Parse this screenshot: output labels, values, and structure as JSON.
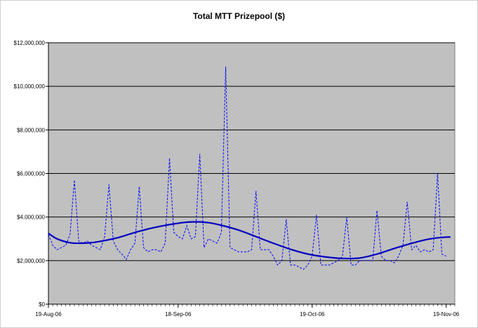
{
  "chart_data": {
    "type": "line",
    "title": "Total MTT Prizepool ($)",
    "xlabel": "",
    "ylabel": "",
    "ylim": [
      0,
      12000000
    ],
    "y_ticks": [
      0,
      2000000,
      4000000,
      6000000,
      8000000,
      10000000,
      12000000
    ],
    "y_tick_labels": [
      "$0",
      "$2,000,000",
      "$4,000,000",
      "$6,000,000",
      "$8,000,000",
      "$10,000,000",
      "$12,000,000"
    ],
    "x_range": [
      "2006-08-19",
      "2006-11-21"
    ],
    "x_ticks": [
      "2006-08-19",
      "2006-09-18",
      "2006-10-19",
      "2006-11-19"
    ],
    "x_tick_labels": [
      "19-Aug-06",
      "18-Sep-06",
      "19-Oct-06",
      "19-Nov-06"
    ],
    "grid": true,
    "plot_background": "#c0c0c0",
    "series": [
      {
        "style": "dashed",
        "color": "#0000ff",
        "points": [
          [
            "2006-08-19",
            3200000
          ],
          [
            "2006-08-20",
            2700000
          ],
          [
            "2006-08-21",
            2500000
          ],
          [
            "2006-08-22",
            2600000
          ],
          [
            "2006-08-23",
            2700000
          ],
          [
            "2006-08-24",
            3200000
          ],
          [
            "2006-08-25",
            5700000
          ],
          [
            "2006-08-26",
            2900000
          ],
          [
            "2006-08-27",
            2800000
          ],
          [
            "2006-08-28",
            2900000
          ],
          [
            "2006-08-29",
            2700000
          ],
          [
            "2006-08-30",
            2600000
          ],
          [
            "2006-08-31",
            2500000
          ],
          [
            "2006-09-01",
            3100000
          ],
          [
            "2006-09-02",
            5500000
          ],
          [
            "2006-09-03",
            2900000
          ],
          [
            "2006-09-04",
            2500000
          ],
          [
            "2006-09-05",
            2300000
          ],
          [
            "2006-09-06",
            2050000
          ],
          [
            "2006-09-07",
            2500000
          ],
          [
            "2006-09-08",
            2800000
          ],
          [
            "2006-09-09",
            5400000
          ],
          [
            "2006-09-10",
            2600000
          ],
          [
            "2006-09-11",
            2400000
          ],
          [
            "2006-09-12",
            2500000
          ],
          [
            "2006-09-13",
            2500000
          ],
          [
            "2006-09-14",
            2400000
          ],
          [
            "2006-09-15",
            2800000
          ],
          [
            "2006-09-16",
            6700000
          ],
          [
            "2006-09-17",
            3300000
          ],
          [
            "2006-09-18",
            3100000
          ],
          [
            "2006-09-19",
            3000000
          ],
          [
            "2006-09-20",
            3600000
          ],
          [
            "2006-09-21",
            3000000
          ],
          [
            "2006-09-22",
            3100000
          ],
          [
            "2006-09-23",
            6900000
          ],
          [
            "2006-09-24",
            2600000
          ],
          [
            "2006-09-25",
            3000000
          ],
          [
            "2006-09-26",
            2900000
          ],
          [
            "2006-09-27",
            2800000
          ],
          [
            "2006-09-28",
            3300000
          ],
          [
            "2006-09-29",
            10900000
          ],
          [
            "2006-09-30",
            2600000
          ],
          [
            "2006-10-01",
            2500000
          ],
          [
            "2006-10-02",
            2400000
          ],
          [
            "2006-10-03",
            2400000
          ],
          [
            "2006-10-04",
            2400000
          ],
          [
            "2006-10-05",
            2500000
          ],
          [
            "2006-10-06",
            5200000
          ],
          [
            "2006-10-07",
            2500000
          ],
          [
            "2006-10-08",
            2500000
          ],
          [
            "2006-10-09",
            2500000
          ],
          [
            "2006-10-10",
            2200000
          ],
          [
            "2006-10-11",
            1800000
          ],
          [
            "2006-10-12",
            2000000
          ],
          [
            "2006-10-13",
            3900000
          ],
          [
            "2006-10-14",
            1800000
          ],
          [
            "2006-10-15",
            1800000
          ],
          [
            "2006-10-16",
            1700000
          ],
          [
            "2006-10-17",
            1600000
          ],
          [
            "2006-10-18",
            1800000
          ],
          [
            "2006-10-19",
            2200000
          ],
          [
            "2006-10-20",
            4100000
          ],
          [
            "2006-10-21",
            1800000
          ],
          [
            "2006-10-22",
            1800000
          ],
          [
            "2006-10-23",
            1800000
          ],
          [
            "2006-10-24",
            1900000
          ],
          [
            "2006-10-25",
            2000000
          ],
          [
            "2006-10-26",
            2200000
          ],
          [
            "2006-10-27",
            4000000
          ],
          [
            "2006-10-28",
            1800000
          ],
          [
            "2006-10-29",
            1800000
          ],
          [
            "2006-10-30",
            2000000
          ],
          [
            "2006-10-31",
            2000000
          ],
          [
            "2006-11-01",
            2000000
          ],
          [
            "2006-11-02",
            2000000
          ],
          [
            "2006-11-03",
            4300000
          ],
          [
            "2006-11-04",
            2200000
          ],
          [
            "2006-11-05",
            2000000
          ],
          [
            "2006-11-06",
            2000000
          ],
          [
            "2006-11-07",
            1900000
          ],
          [
            "2006-11-08",
            2200000
          ],
          [
            "2006-11-09",
            2700000
          ],
          [
            "2006-11-10",
            4700000
          ],
          [
            "2006-11-11",
            2500000
          ],
          [
            "2006-11-12",
            2700000
          ],
          [
            "2006-11-13",
            2400000
          ],
          [
            "2006-11-14",
            2500000
          ],
          [
            "2006-11-15",
            2400000
          ],
          [
            "2006-11-16",
            2500000
          ],
          [
            "2006-11-17",
            6000000
          ],
          [
            "2006-11-18",
            2300000
          ],
          [
            "2006-11-19",
            2200000
          ]
        ]
      },
      {
        "style": "solid",
        "color": "#0000c0",
        "points": [
          [
            "2006-08-19",
            3250000
          ],
          [
            "2006-08-21",
            3000000
          ],
          [
            "2006-08-24",
            2820000
          ],
          [
            "2006-08-27",
            2800000
          ],
          [
            "2006-08-30",
            2850000
          ],
          [
            "2006-09-04",
            3050000
          ],
          [
            "2006-09-09",
            3350000
          ],
          [
            "2006-09-14",
            3580000
          ],
          [
            "2006-09-19",
            3740000
          ],
          [
            "2006-09-22",
            3780000
          ],
          [
            "2006-09-25",
            3740000
          ],
          [
            "2006-09-28",
            3620000
          ],
          [
            "2006-10-02",
            3400000
          ],
          [
            "2006-10-06",
            3100000
          ],
          [
            "2006-10-10",
            2800000
          ],
          [
            "2006-10-14",
            2520000
          ],
          [
            "2006-10-18",
            2300000
          ],
          [
            "2006-10-22",
            2170000
          ],
          [
            "2006-10-26",
            2100000
          ],
          [
            "2006-10-30",
            2120000
          ],
          [
            "2006-11-03",
            2300000
          ],
          [
            "2006-11-08",
            2620000
          ],
          [
            "2006-11-13",
            2900000
          ],
          [
            "2006-11-16",
            3020000
          ],
          [
            "2006-11-19",
            3080000
          ],
          [
            "2006-11-20",
            3080000
          ]
        ]
      }
    ]
  }
}
